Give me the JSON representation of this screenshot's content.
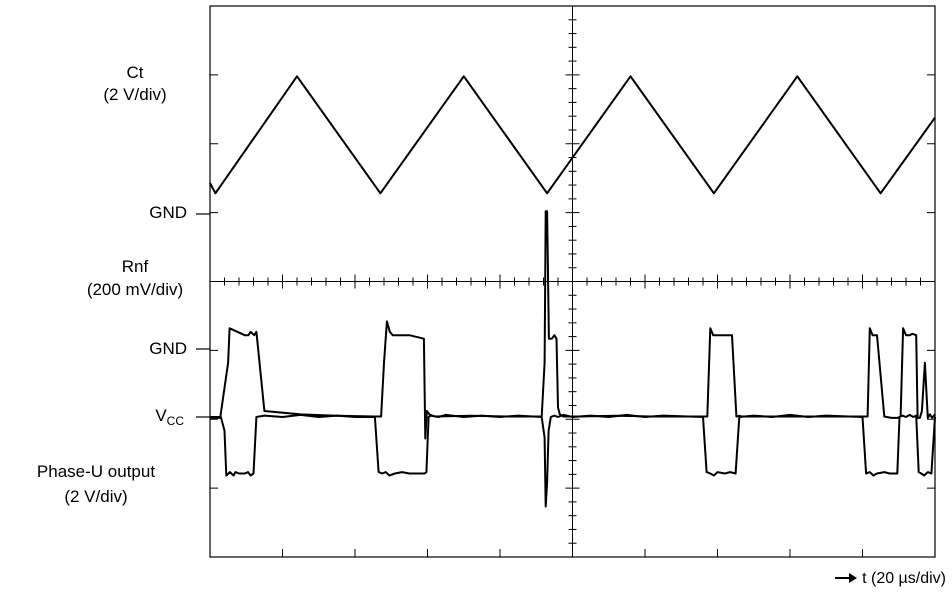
{
  "chart_data": {
    "type": "line",
    "title": "",
    "xlabel": "t (20 µs/div)",
    "x_unit": "µs",
    "x_per_div": 20,
    "xlim": [
      0,
      200
    ],
    "grid": "center crosshair with tick marks, 10 horizontal by 8 vertical divisions",
    "channels": [
      {
        "name_lines": [
          "Ct",
          "(2 V/div)"
        ],
        "ground_label": "GND",
        "waveform": "triangle",
        "x": [
          0,
          1.5,
          24,
          47,
          70,
          93,
          116,
          139,
          162,
          185,
          200
        ],
        "y_div": [
          0.45,
          0.3,
          2.0,
          0.3,
          2.0,
          0.3,
          2.0,
          0.3,
          2.0,
          0.3,
          1.4
        ]
      },
      {
        "name_lines": [
          "Rnf",
          "(200 mV/div)"
        ],
        "ground_label": "GND",
        "waveform": "current-sense pulses",
        "x": [
          0,
          0.6,
          2.8,
          5.0,
          5.4,
          9.6,
          10.6,
          11.2,
          12.2,
          12.8,
          15,
          25,
          35,
          45.5,
          46.5,
          47.2,
          48.0,
          48.8,
          49.6,
          50.4,
          55,
          59.0,
          59.4,
          59.8,
          60.5,
          62,
          72,
          82,
          91.5,
          92.3,
          92.6,
          93.0,
          93.5,
          94.3,
          95.0,
          95.6,
          96.0,
          96.5,
          97.5,
          102,
          112,
          122,
          136,
          137.2,
          138.0,
          138.8,
          140,
          144,
          145.2,
          146.0,
          146.8,
          149,
          160,
          170,
          180,
          181.4,
          182.0,
          182.8,
          184,
          186,
          188,
          189.6,
          190.5,
          191.2,
          192.0,
          193.0,
          193.8,
          194.8,
          195.2,
          195.8,
          196.4,
          197.2,
          198.0,
          198.6,
          199.2,
          200
        ],
        "y_div": [
          -1.0,
          -1.0,
          -1.0,
          -0.2,
          0.3,
          0.2,
          0.2,
          0.25,
          0.2,
          0.25,
          -0.9,
          -0.95,
          -0.97,
          -0.98,
          -0.98,
          -0.98,
          -0.2,
          0.4,
          0.25,
          0.2,
          0.2,
          0.15,
          -1.3,
          -0.9,
          -0.95,
          -0.98,
          -0.97,
          -0.98,
          -0.98,
          -0.2,
          2.0,
          2.0,
          0.15,
          0.15,
          0.2,
          0.15,
          -0.85,
          -0.95,
          -0.98,
          -0.98,
          -0.97,
          -0.98,
          -0.98,
          -0.98,
          0.3,
          0.2,
          0.2,
          0.2,
          -0.98,
          -0.97,
          -0.98,
          -0.98,
          -0.98,
          -0.98,
          -0.98,
          -0.98,
          0.3,
          0.2,
          0.2,
          -0.98,
          -1.0,
          -1.0,
          -0.98,
          0.3,
          0.2,
          0.2,
          0.22,
          0.2,
          -1.0,
          -1.0,
          -0.9,
          -0.2,
          -1.0,
          -0.95,
          -1.0,
          -0.95
        ]
      },
      {
        "name_lines": [
          "Phase-U output",
          "(2 V/div)"
        ],
        "ground_label_main": "V",
        "ground_label_sub": "CC",
        "waveform": "phase-U output",
        "x": [
          0,
          0.6,
          3.0,
          4.0,
          4.5,
          5.5,
          6.5,
          7.0,
          8.0,
          9.6,
          10.5,
          11.2,
          12.0,
          12.8,
          15,
          20,
          25,
          30,
          35,
          40,
          45.5,
          46.5,
          47.5,
          48.5,
          49.5,
          51,
          53,
          55,
          58.5,
          59.2,
          59.7,
          60.3,
          61,
          63,
          65,
          70,
          75,
          80,
          85,
          91.5,
          92.3,
          92.6,
          93.0,
          93.4,
          94.0,
          95.0,
          96.0,
          97.5,
          100,
          105,
          110,
          115,
          120,
          125,
          136,
          137.0,
          138.0,
          139.0,
          140.0,
          142,
          143.5,
          145,
          146,
          150,
          155,
          160,
          165,
          170,
          180,
          181.0,
          182.0,
          183.0,
          184.0,
          186,
          187.5,
          189.6,
          190.2,
          191.0,
          192.0,
          193.0,
          194.0,
          194.8,
          195.5,
          196.2,
          197.0,
          198.0,
          199.0,
          200
        ],
        "y_div": [
          0,
          0,
          0,
          -0.2,
          -0.85,
          -0.8,
          -0.85,
          -0.8,
          -0.82,
          -0.82,
          -0.8,
          -0.85,
          -0.82,
          0,
          0.02,
          0.0,
          0.03,
          0.0,
          0.02,
          0.0,
          0,
          -0.8,
          -0.82,
          -0.8,
          -0.85,
          -0.82,
          -0.8,
          -0.82,
          -0.82,
          -0.82,
          -0.8,
          0,
          0.02,
          0.0,
          0.03,
          0.0,
          0.02,
          0.0,
          0.02,
          0,
          -0.3,
          -1.3,
          -0.95,
          -0.2,
          0,
          0.02,
          0.0,
          0.03,
          0.0,
          0.02,
          0.0,
          0.03,
          0.0,
          0.02,
          0,
          -0.8,
          -0.82,
          -0.85,
          -0.8,
          -0.82,
          -0.8,
          -0.82,
          0,
          0.02,
          0.0,
          0.03,
          0.0,
          0.02,
          0,
          -0.82,
          -0.8,
          -0.85,
          -0.82,
          -0.8,
          -0.82,
          -0.82,
          0,
          0.02,
          0.0,
          0.03,
          0.0,
          0.02,
          -0.8,
          -0.82,
          -0.85,
          -0.8,
          -0.82,
          0
        ]
      }
    ]
  }
}
